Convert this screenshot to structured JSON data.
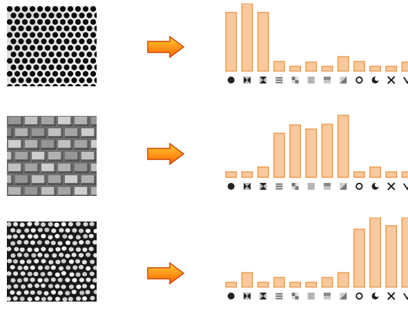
{
  "colors": {
    "bar_fill": "#fac89a",
    "bar_stroke": "#e8913f",
    "arrow_top": "#ffcc33",
    "arrow_bottom": "#ff6600",
    "arrow_stroke": "#cc4400",
    "icon_dark": "#222222"
  },
  "rows": [
    {
      "texture": "hexagonal-dot-texture",
      "chart_data": {
        "type": "bar",
        "values": [
          85,
          98,
          85,
          14,
          7,
          13,
          7,
          21,
          14,
          7,
          7,
          13
        ]
      }
    },
    {
      "texture": "brick-tile-texture",
      "chart_data": {
        "type": "bar",
        "values": [
          8,
          8,
          15,
          64,
          76,
          70,
          77,
          90,
          8,
          15,
          8,
          8
        ]
      }
    },
    {
      "texture": "irregular-cell-texture",
      "chart_data": {
        "type": "bar",
        "values": [
          7,
          21,
          7,
          14,
          7,
          7,
          14,
          21,
          84,
          101,
          89,
          101
        ]
      }
    }
  ],
  "feature_icons": [
    "filled-circle-icon",
    "bowtie-icon",
    "hourglass-icon",
    "horizontal-stripes-icon",
    "checker-icon",
    "gray-square-icon",
    "shaded-square-icon",
    "gradient-square-icon",
    "ring-icon",
    "crescent-icon",
    "cross-icon",
    "v-shape-icon"
  ]
}
